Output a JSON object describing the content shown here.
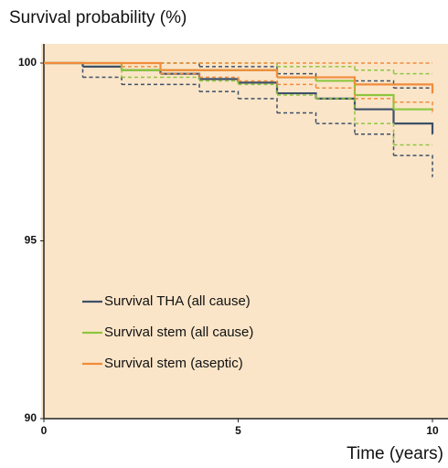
{
  "chart_data": {
    "type": "line",
    "step": "post",
    "title": "Survival probability (%)",
    "x_label": "Time (years)",
    "x": [
      0,
      1,
      2,
      3,
      4,
      5,
      6,
      7,
      8,
      9,
      10
    ],
    "series": [
      {
        "name": "Survival THA (all cause)",
        "color": "#3d5068",
        "values": [
          100,
          99.9,
          99.8,
          99.7,
          99.55,
          99.45,
          99.15,
          99.0,
          98.7,
          98.3,
          98.0
        ],
        "ci_lower": [
          100,
          99.6,
          99.4,
          99.4,
          99.2,
          99.0,
          98.6,
          98.3,
          98.0,
          97.4,
          96.8
        ],
        "ci_upper": [
          100,
          100,
          100,
          100,
          99.9,
          99.9,
          99.7,
          99.6,
          99.5,
          99.3,
          99.2
        ]
      },
      {
        "name": "Survival stem (all cause)",
        "color": "#8dc63f",
        "values": [
          100,
          100,
          99.8,
          99.8,
          99.8,
          99.8,
          99.6,
          99.5,
          99.1,
          98.7,
          98.7
        ],
        "ci_lower": [
          100,
          100,
          99.6,
          99.6,
          99.5,
          99.4,
          99.1,
          99.0,
          98.3,
          97.7,
          97.7
        ],
        "ci_upper": [
          100,
          100,
          100,
          100,
          100,
          100,
          99.9,
          99.9,
          99.8,
          99.7,
          99.7
        ]
      },
      {
        "name": "Survival stem (aseptic)",
        "color": "#f08c3c",
        "values": [
          100,
          100,
          100,
          99.8,
          99.8,
          99.8,
          99.6,
          99.6,
          99.4,
          99.4,
          99.15
        ],
        "ci_lower": [
          100,
          100,
          99.9,
          99.7,
          99.6,
          99.5,
          99.4,
          99.3,
          99.0,
          98.9,
          98.6
        ],
        "ci_upper": [
          100,
          100,
          100,
          100,
          100,
          100,
          100,
          100,
          100,
          100,
          100
        ]
      }
    ],
    "xlim": [
      0,
      10
    ],
    "xticks": [
      0,
      5,
      10
    ],
    "ylim": [
      90,
      100
    ],
    "yticks": [
      90,
      95,
      100
    ],
    "background": "#fbe5c8",
    "legend": "lower-left"
  }
}
